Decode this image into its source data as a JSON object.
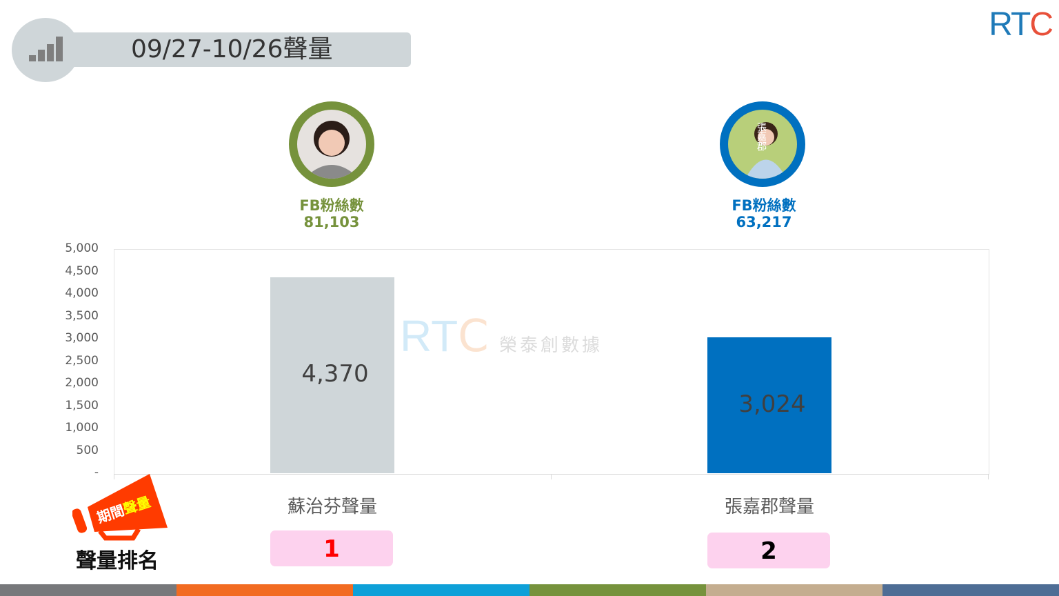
{
  "header": {
    "title": "09/27-10/26聲量",
    "icon": "bar-signal-icon"
  },
  "logo": {
    "text": "RTC",
    "watermark_text": "榮泰創數據"
  },
  "candidates": [
    {
      "name": "蘇治芬",
      "fb_label": "FB粉絲數",
      "fb_fans": "81,103",
      "color": "#76923c",
      "rank": "1",
      "rank_color": "#ff0000"
    },
    {
      "name": "張嘉郡",
      "fb_label": "FB粉絲數",
      "fb_fans": "63,217",
      "color": "#0070c0",
      "rank": "2",
      "rank_color": "#000000",
      "photo_text": "張嘉郡"
    }
  ],
  "chart_data": {
    "type": "bar",
    "categories": [
      "蘇治芬聲量",
      "張嘉郡聲量"
    ],
    "values": [
      4370,
      3024
    ],
    "data_labels": [
      "4,370",
      "3,024"
    ],
    "colors": [
      "#cfd6d9",
      "#0070c0"
    ],
    "ylim": [
      0,
      5000
    ],
    "yticks": [
      "-",
      "500",
      "1,000",
      "1,500",
      "2,000",
      "2,500",
      "3,000",
      "3,500",
      "4,000",
      "4,500",
      "5,000"
    ],
    "grid": false
  },
  "ranking": {
    "label": "聲量排名",
    "badge_white": "期間",
    "badge_yellow": "聲量"
  },
  "footer_colors": [
    "#77787b",
    "#f26b21",
    "#0ea0d8",
    "#76923c",
    "#c4ad8f",
    "#4e6d95"
  ]
}
